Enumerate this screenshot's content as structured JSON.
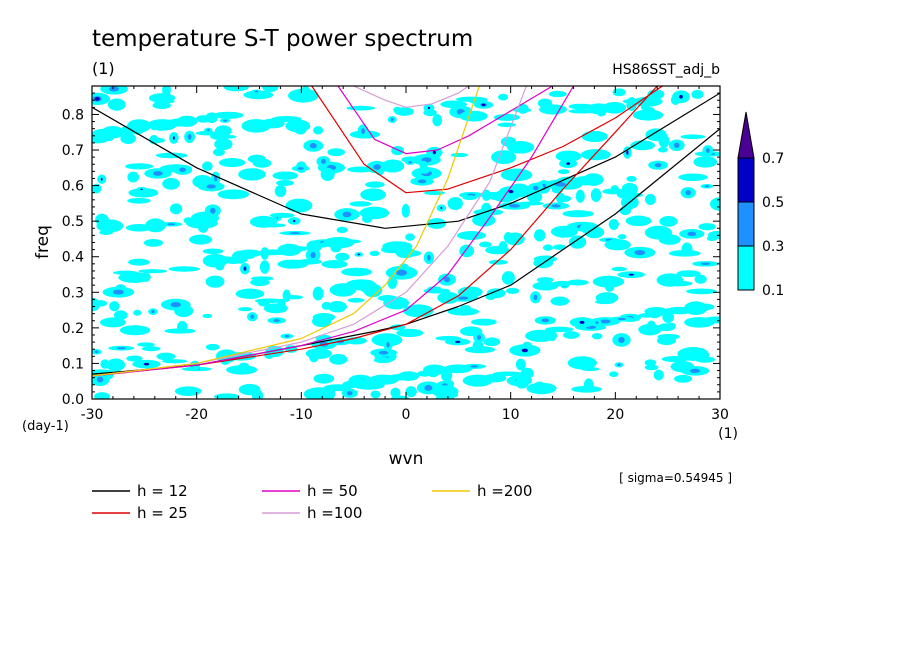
{
  "chart_data": {
    "type": "heatmap",
    "title": "temperature S-T power spectrum",
    "subtitle_left": "(1)",
    "subtitle_right": "HS86SST_adj_b",
    "xlabel": "wvn",
    "ylabel": "freq",
    "x_unit_label": "(1)",
    "y_unit_label": "(day-1)",
    "xlim": [
      -30,
      30
    ],
    "ylim": [
      0,
      0.88
    ],
    "x_ticks": [
      -30,
      -20,
      -10,
      0,
      10,
      20,
      30
    ],
    "x_tick_labels": [
      "-30",
      "-20",
      "-10",
      "0",
      "10",
      "20",
      "30"
    ],
    "y_ticks": [
      0.0,
      0.1,
      0.2,
      0.3,
      0.4,
      0.5,
      0.6,
      0.7,
      0.8
    ],
    "y_tick_labels": [
      "0.0",
      "0.1",
      "0.2",
      "0.3",
      "0.4",
      "0.5",
      "0.6",
      "0.7",
      "0.8"
    ],
    "sigma_label": "[ sigma=0.54945 ]",
    "colorbar": {
      "levels": [
        "0.1",
        "0.3",
        "0.5",
        "0.7"
      ],
      "colors": [
        "#00ffff",
        "#1e90ff",
        "#0000c8",
        "#4b0096"
      ]
    },
    "dispersion_curves": [
      {
        "label": "h = 12",
        "h": 12,
        "color": "#000000"
      },
      {
        "label": "h = 25",
        "h": 25,
        "color": "#e00000"
      },
      {
        "label": "h = 50",
        "h": 50,
        "color": "#e000c8"
      },
      {
        "label": "h =100",
        "h": 100,
        "color": "#d79ed7"
      },
      {
        "label": "h =200",
        "h": 200,
        "color": "#f0c800"
      }
    ],
    "curve_points": {
      "ig_n1": {
        "h12": [
          [
            -30,
            0.82
          ],
          [
            -20,
            0.65
          ],
          [
            -10,
            0.52
          ],
          [
            -2,
            0.48
          ],
          [
            5,
            0.5
          ],
          [
            10,
            0.55
          ],
          [
            20,
            0.68
          ],
          [
            30,
            0.86
          ]
        ],
        "h25": [
          [
            -9,
            0.88
          ],
          [
            -4,
            0.66
          ],
          [
            0,
            0.58
          ],
          [
            4,
            0.59
          ],
          [
            10,
            0.65
          ],
          [
            15,
            0.71
          ],
          [
            20,
            0.79
          ],
          [
            24.5,
            0.88
          ]
        ],
        "h50": [
          [
            -6.5,
            0.88
          ],
          [
            -3,
            0.73
          ],
          [
            0,
            0.69
          ],
          [
            3,
            0.7
          ],
          [
            6,
            0.74
          ],
          [
            10,
            0.81
          ],
          [
            14,
            0.88
          ]
        ],
        "h100": [
          [
            -5,
            0.88
          ],
          [
            -2,
            0.84
          ],
          [
            0,
            0.82
          ],
          [
            2.5,
            0.83
          ],
          [
            5,
            0.86
          ],
          [
            6,
            0.88
          ]
        ]
      },
      "kelvin": {
        "h12": [
          [
            -30,
            0.07
          ],
          [
            -20,
            0.095
          ],
          [
            -10,
            0.15
          ],
          [
            -3,
            0.19
          ],
          [
            0,
            0.21
          ],
          [
            5,
            0.26
          ],
          [
            10,
            0.32
          ],
          [
            20,
            0.52
          ],
          [
            30,
            0.76
          ]
        ],
        "h25": [
          [
            -30,
            0.065
          ],
          [
            -20,
            0.095
          ],
          [
            -10,
            0.14
          ],
          [
            -5,
            0.17
          ],
          [
            0,
            0.21
          ],
          [
            5,
            0.29
          ],
          [
            10,
            0.42
          ],
          [
            15,
            0.59
          ],
          [
            20,
            0.75
          ],
          [
            24,
            0.88
          ]
        ],
        "h50": [
          [
            -30,
            0.065
          ],
          [
            -20,
            0.095
          ],
          [
            -10,
            0.15
          ],
          [
            -5,
            0.19
          ],
          [
            0,
            0.25
          ],
          [
            4,
            0.35
          ],
          [
            8,
            0.51
          ],
          [
            12,
            0.68
          ],
          [
            16,
            0.88
          ]
        ],
        "h100": [
          [
            -30,
            0.065
          ],
          [
            -20,
            0.1
          ],
          [
            -10,
            0.16
          ],
          [
            -5,
            0.21
          ],
          [
            0,
            0.3
          ],
          [
            4,
            0.43
          ],
          [
            8,
            0.61
          ],
          [
            11.5,
            0.88
          ]
        ],
        "h200": [
          [
            -30,
            0.065
          ],
          [
            -20,
            0.1
          ],
          [
            -10,
            0.17
          ],
          [
            -5,
            0.24
          ],
          [
            -2,
            0.32
          ],
          [
            1,
            0.43
          ],
          [
            4,
            0.62
          ],
          [
            7,
            0.88
          ]
        ]
      }
    },
    "spectral_blobs_note_levels": [
      "0.1",
      "0.3",
      "0.5"
    ]
  }
}
